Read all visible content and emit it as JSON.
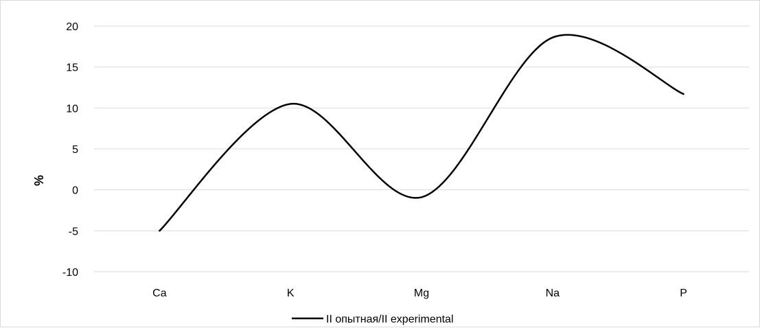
{
  "chart_data": {
    "type": "line",
    "smooth": true,
    "categories": [
      "Ca",
      "K",
      "Mg",
      "Na",
      "P"
    ],
    "series": [
      {
        "name": "II опытная/II experimental",
        "color": "#000000",
        "values": [
          -5,
          10.5,
          -0.9,
          18.6,
          11.7
        ]
      }
    ],
    "title": "",
    "xlabel": "",
    "ylabel": "%",
    "ylim": [
      -10,
      20
    ],
    "yticks": [
      -10,
      -5,
      0,
      5,
      10,
      15,
      20
    ],
    "grid": true,
    "legend": "bottom"
  }
}
